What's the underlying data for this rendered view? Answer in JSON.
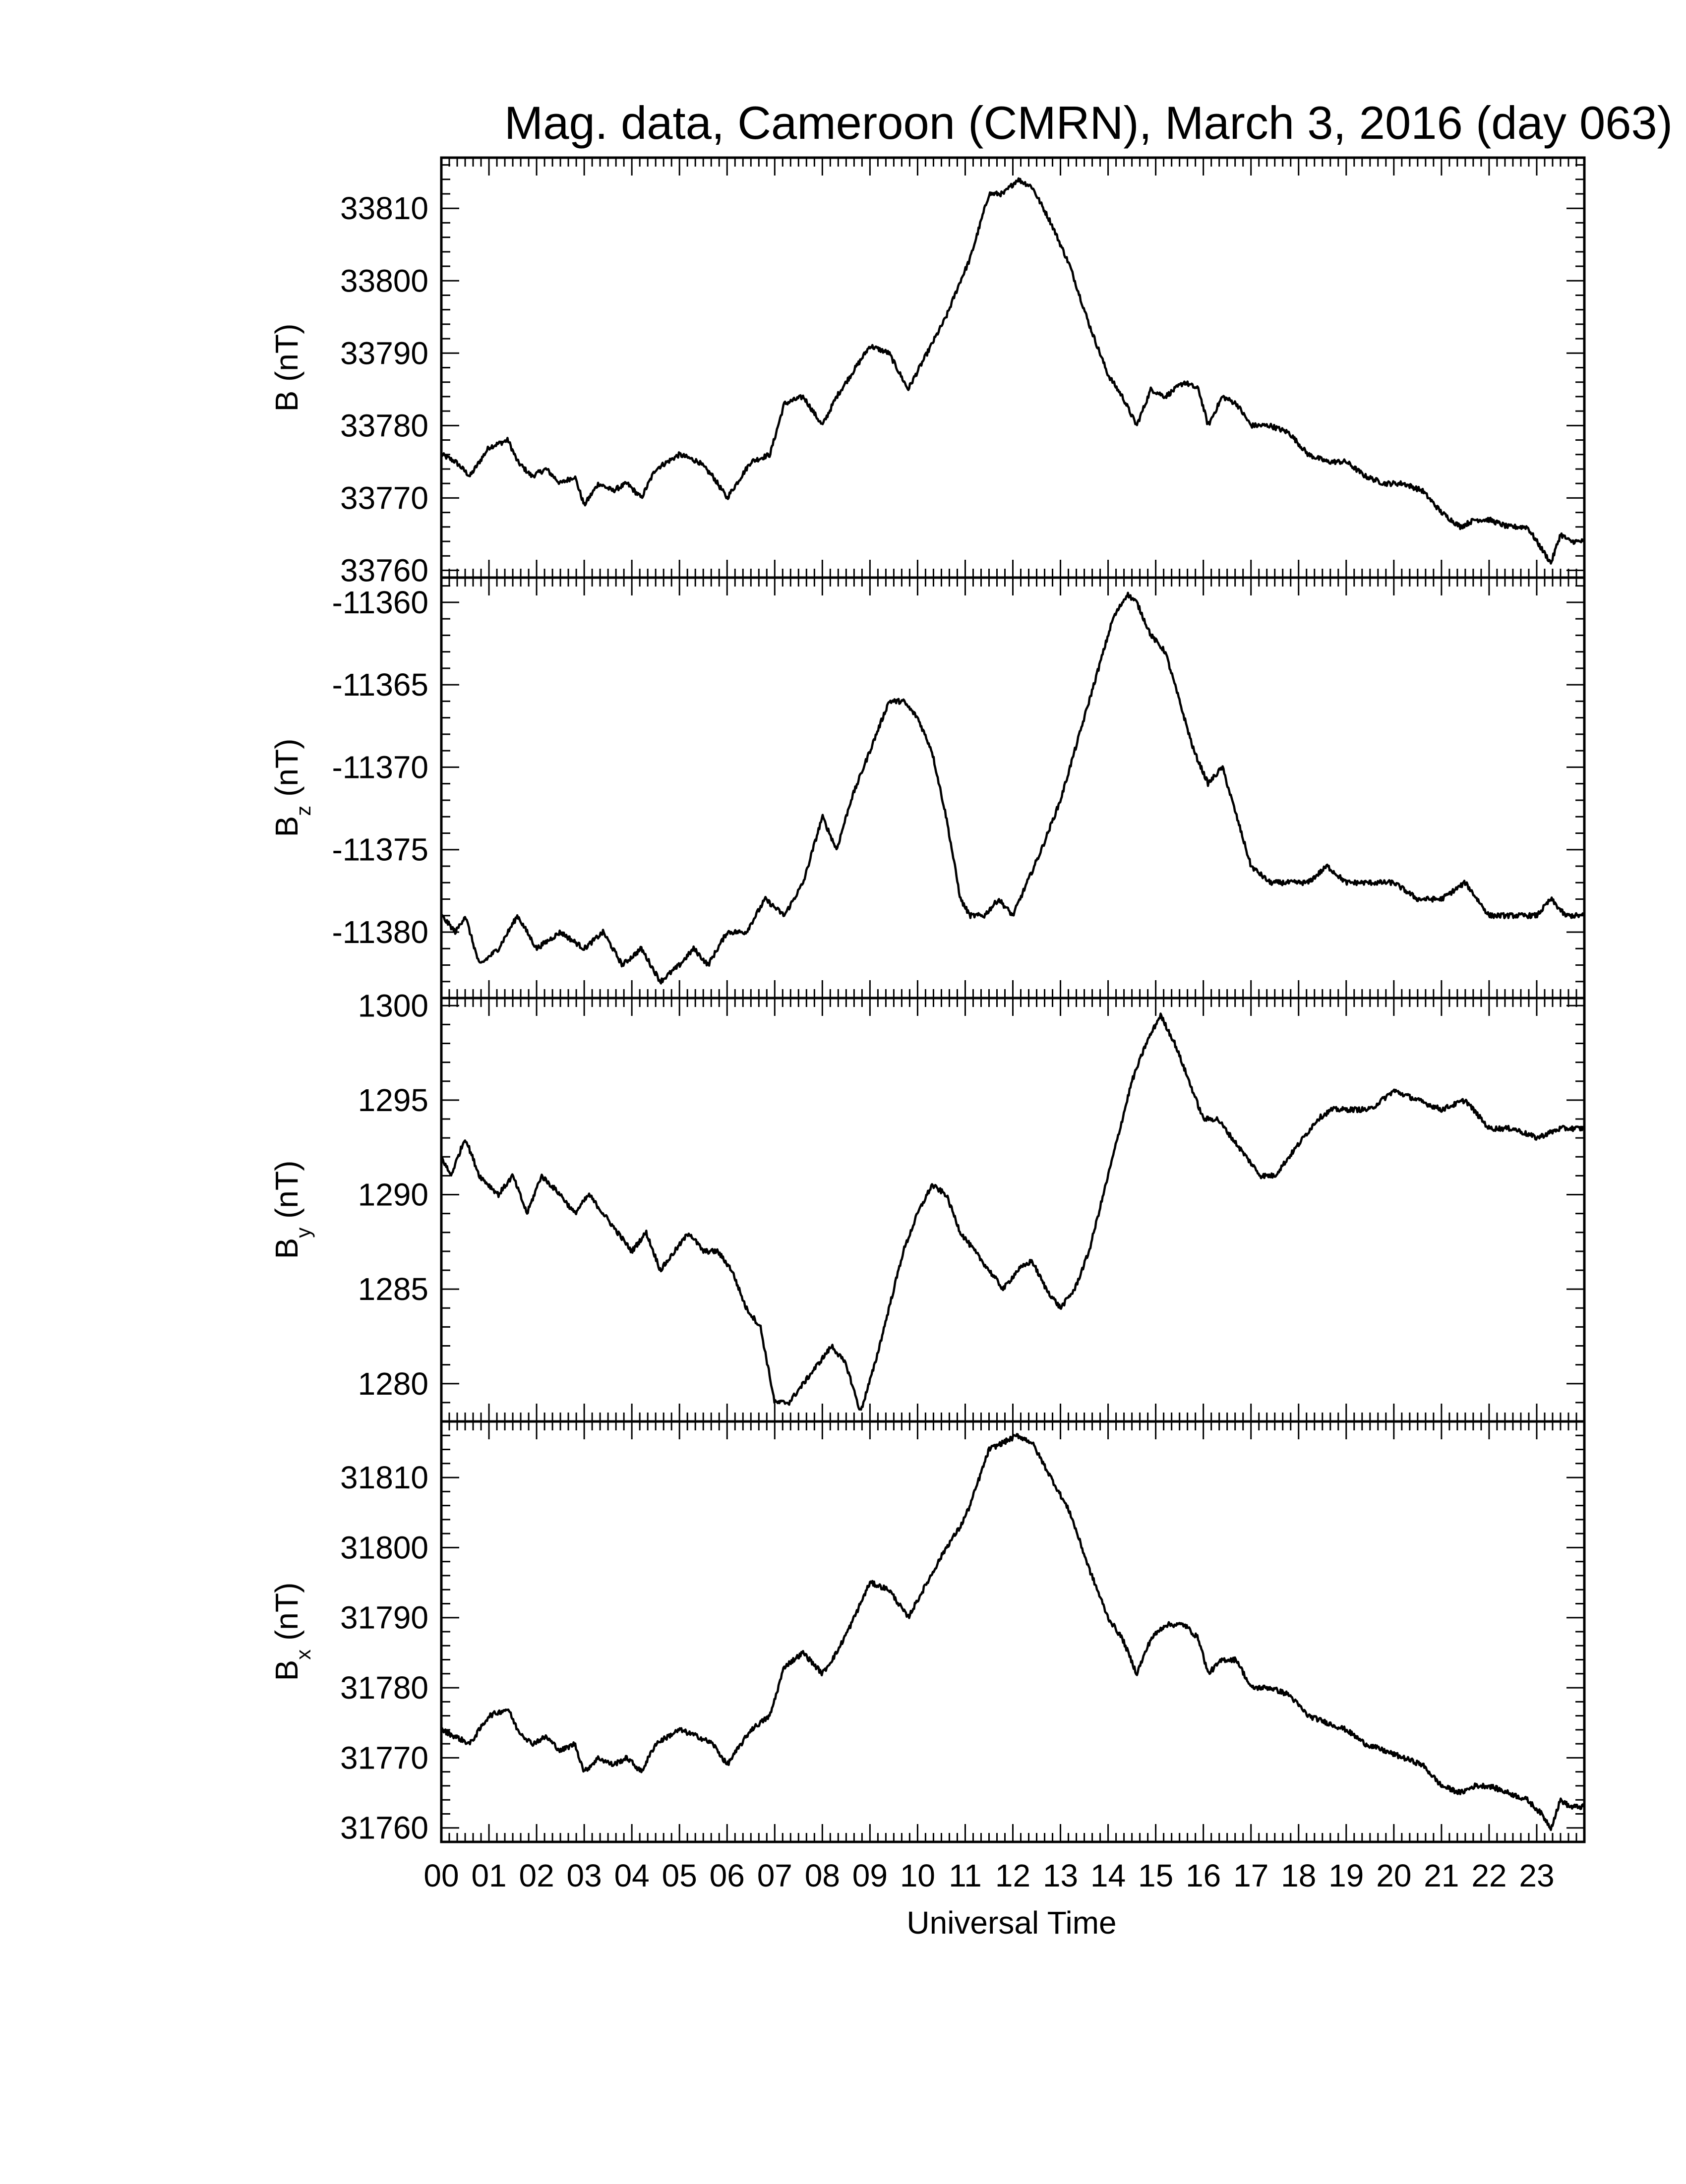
{
  "chart_data": {
    "type": "line",
    "title": "Mag. data, Cameroon (CMRN), March 3, 2016 (day 063)",
    "xlabel": "Universal Time",
    "xlim": [
      0,
      24
    ],
    "x_tick_labels": [
      "00",
      "01",
      "02",
      "03",
      "04",
      "05",
      "06",
      "07",
      "08",
      "09",
      "10",
      "11",
      "12",
      "13",
      "14",
      "15",
      "16",
      "17",
      "18",
      "19",
      "20",
      "21",
      "22",
      "23"
    ],
    "panels": [
      {
        "ylabel": "B",
        "ylabel_sub": "",
        "ylabel_unit": "(nT)",
        "ylim": [
          33759,
          33817
        ],
        "y_ticks": [
          33760,
          33770,
          33780,
          33790,
          33800,
          33810
        ],
        "y_tick_labels": [
          "33760",
          "33770",
          "33780",
          "33790",
          "33800",
          "33810"
        ],
        "x": [
          0,
          0.3,
          0.6,
          1,
          1.4,
          1.6,
          1.9,
          2.2,
          2.5,
          2.8,
          3.0,
          3.3,
          3.6,
          3.9,
          4.2,
          4.5,
          5.0,
          5.4,
          5.7,
          6.0,
          6.5,
          6.9,
          7.2,
          7.6,
          8.0,
          8.3,
          8.6,
          9.0,
          9.4,
          9.8,
          10.2,
          10.6,
          10.9,
          11.1,
          11.5,
          11.8,
          12.1,
          12.4,
          12.8,
          13.2,
          13.6,
          14.0,
          14.3,
          14.6,
          14.9,
          15.2,
          15.6,
          15.9,
          16.1,
          16.4,
          16.7,
          17.0,
          17.4,
          17.8,
          18.2,
          18.6,
          19.0,
          19.4,
          19.8,
          20.2,
          20.6,
          21.0,
          21.4,
          21.7,
          22.0,
          22.4,
          22.8,
          23.1,
          23.3,
          23.5,
          23.7,
          24.0
        ],
        "y": [
          33776,
          33775,
          33773,
          33777,
          33778,
          33775,
          33773,
          33774,
          33772,
          33773,
          33769,
          33772,
          33771,
          33772,
          33770,
          33774,
          33776,
          33775,
          33773,
          33770,
          33775,
          33776,
          33783,
          33784,
          33780,
          33784,
          33787,
          33791,
          33790,
          33785,
          33790,
          33795,
          33800,
          33803,
          33812,
          33812,
          33814,
          33813,
          33808,
          33802,
          33794,
          33787,
          33784,
          33780,
          33785,
          33784,
          33786,
          33785,
          33780,
          33784,
          33783,
          33780,
          33780,
          33779,
          33776,
          33775,
          33775,
          33773,
          33772,
          33772,
          33771,
          33768,
          33766,
          33767,
          33767,
          33766,
          33766,
          33763,
          33761,
          33765,
          33764,
          33764
        ]
      },
      {
        "ylabel": "B",
        "ylabel_sub": "z",
        "ylabel_unit": "(nT)",
        "ylim": [
          -11384,
          -11358.5
        ],
        "y_ticks": [
          -11380,
          -11375,
          -11370,
          -11365,
          -11360
        ],
        "y_tick_labels": [
          "-11380",
          "-11375",
          "-11370",
          "-11365",
          "-11360"
        ],
        "x": [
          0,
          0.3,
          0.5,
          0.8,
          1.2,
          1.6,
          2.0,
          2.5,
          3.0,
          3.4,
          3.8,
          4.2,
          4.6,
          5.0,
          5.3,
          5.6,
          6.0,
          6.4,
          6.8,
          7.2,
          7.6,
          8.0,
          8.3,
          8.6,
          9.0,
          9.4,
          9.7,
          10.0,
          10.3,
          10.6,
          10.9,
          11.1,
          11.4,
          11.7,
          12.0,
          12.3,
          12.6,
          13.0,
          13.4,
          13.8,
          14.1,
          14.4,
          14.6,
          14.9,
          15.2,
          15.5,
          15.8,
          16.1,
          16.4,
          16.7,
          17.0,
          17.4,
          17.8,
          18.2,
          18.6,
          19.0,
          19.5,
          20.0,
          20.5,
          21.0,
          21.5,
          22.0,
          22.5,
          23.0,
          23.3,
          23.6,
          24.0
        ],
        "y": [
          -11379,
          -11380,
          -11379,
          -11382,
          -11381,
          -11379,
          -11381,
          -11380,
          -11381,
          -11380,
          -11382,
          -11381,
          -11383,
          -11382,
          -11381,
          -11382,
          -11380,
          -11380,
          -11378,
          -11379,
          -11377,
          -11373,
          -11375,
          -11372,
          -11369,
          -11366,
          -11366,
          -11367,
          -11369,
          -11373,
          -11378,
          -11379,
          -11379,
          -11378,
          -11379,
          -11377,
          -11375,
          -11372,
          -11368,
          -11364,
          -11361,
          -11359.5,
          -11360,
          -11362,
          -11363,
          -11366,
          -11369,
          -11371,
          -11370,
          -11373,
          -11376,
          -11377,
          -11377,
          -11377,
          -11376,
          -11377,
          -11377,
          -11377,
          -11378,
          -11378,
          -11377,
          -11379,
          -11379,
          -11379,
          -11378,
          -11379,
          -11379
        ]
      },
      {
        "ylabel": "B",
        "ylabel_sub": "y",
        "ylabel_unit": "(nT)",
        "ylim": [
          1278,
          1300.4
        ],
        "y_ticks": [
          1280,
          1285,
          1290,
          1295,
          1300
        ],
        "y_tick_labels": [
          "1280",
          "1285",
          "1290",
          "1295",
          "1300"
        ],
        "x": [
          0,
          0.2,
          0.5,
          0.8,
          1.2,
          1.5,
          1.8,
          2.1,
          2.5,
          2.8,
          3.1,
          3.4,
          3.7,
          4.0,
          4.3,
          4.6,
          4.9,
          5.2,
          5.5,
          5.8,
          6.1,
          6.4,
          6.7,
          7.0,
          7.3,
          7.6,
          7.9,
          8.2,
          8.5,
          8.8,
          9.1,
          9.4,
          9.7,
          10.0,
          10.3,
          10.6,
          10.9,
          11.2,
          11.5,
          11.8,
          12.1,
          12.4,
          12.7,
          13.0,
          13.3,
          13.6,
          13.9,
          14.2,
          14.5,
          14.8,
          15.1,
          15.4,
          15.7,
          16.0,
          16.3,
          16.6,
          16.9,
          17.2,
          17.5,
          17.8,
          18.1,
          18.4,
          18.7,
          19.0,
          19.5,
          20.0,
          20.5,
          21.0,
          21.5,
          22.0,
          22.5,
          23.0,
          23.5,
          24.0
        ],
        "y": [
          1292,
          1291,
          1293,
          1291,
          1290,
          1291,
          1289,
          1291,
          1290,
          1289,
          1290,
          1289,
          1288,
          1287,
          1288,
          1286,
          1287,
          1288,
          1287,
          1287,
          1286,
          1284,
          1283,
          1279,
          1279,
          1280,
          1281,
          1282,
          1281,
          1278.5,
          1281,
          1284,
          1287,
          1289,
          1290.5,
          1290,
          1288,
          1287,
          1286,
          1285,
          1286,
          1286.5,
          1285,
          1284,
          1285,
          1287,
          1290,
          1293,
          1296,
          1298,
          1299.5,
          1298,
          1296,
          1294,
          1294,
          1293,
          1292,
          1291,
          1291,
          1292,
          1293,
          1294,
          1294.5,
          1294.5,
          1294.5,
          1295.5,
          1295,
          1294.5,
          1295,
          1293.5,
          1293.5,
          1293,
          1293.5,
          1293.5
        ]
      },
      {
        "ylabel": "B",
        "ylabel_sub": "x",
        "ylabel_unit": "(nT)",
        "ylim": [
          31758,
          31818
        ],
        "y_ticks": [
          31760,
          31770,
          31780,
          31790,
          31800,
          31810
        ],
        "y_tick_labels": [
          "31760",
          "31770",
          "31780",
          "31790",
          "31800",
          "31810"
        ],
        "x": [
          0,
          0.3,
          0.6,
          1,
          1.4,
          1.6,
          1.9,
          2.2,
          2.5,
          2.8,
          3.0,
          3.3,
          3.6,
          3.9,
          4.2,
          4.5,
          5.0,
          5.4,
          5.7,
          6.0,
          6.5,
          6.9,
          7.2,
          7.6,
          8.0,
          8.3,
          8.6,
          9.0,
          9.4,
          9.8,
          10.2,
          10.6,
          10.9,
          11.1,
          11.5,
          11.8,
          12.1,
          12.4,
          12.8,
          13.2,
          13.6,
          14.0,
          14.3,
          14.6,
          14.9,
          15.2,
          15.6,
          15.9,
          16.1,
          16.4,
          16.7,
          17.0,
          17.4,
          17.8,
          18.2,
          18.6,
          19.0,
          19.4,
          19.8,
          20.2,
          20.6,
          21.0,
          21.4,
          21.7,
          22.0,
          22.4,
          22.8,
          23.1,
          23.3,
          23.5,
          23.7,
          24.0
        ],
        "y": [
          31774,
          31773,
          31772,
          31776,
          31777,
          31774,
          31772,
          31773,
          31771,
          31772,
          31768,
          31770,
          31769,
          31770,
          31768,
          31772,
          31774,
          31773,
          31772,
          31769,
          31774,
          31776,
          31783,
          31785,
          31782,
          31785,
          31789,
          31795,
          31794,
          31790,
          31795,
          31800,
          31803,
          31806,
          31814,
          31815,
          31816,
          31815,
          31810,
          31805,
          31797,
          31790,
          31787,
          31782,
          31787,
          31789,
          31789,
          31787,
          31782,
          31784,
          31784,
          31780,
          31780,
          31779,
          31776,
          31775,
          31774,
          31772,
          31771,
          31770,
          31769,
          31766,
          31765,
          31766,
          31766,
          31765,
          31764,
          31762,
          31760,
          31764,
          31763,
          31763
        ]
      }
    ]
  }
}
